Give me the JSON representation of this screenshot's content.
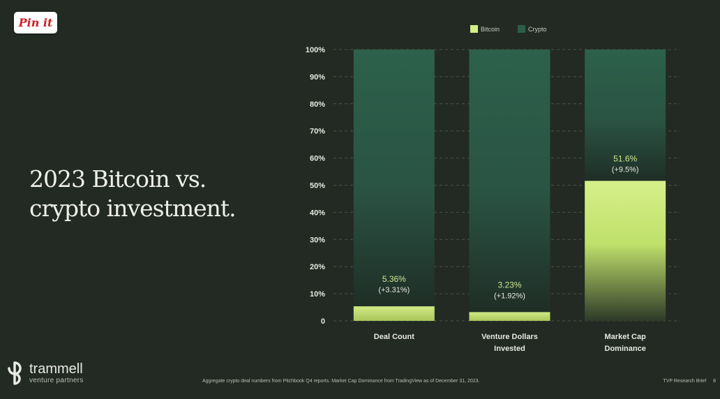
{
  "pin_button": {
    "label": "Pin it"
  },
  "title": {
    "line1": "2023 Bitcoin vs.",
    "line2": "crypto investment."
  },
  "brand": {
    "name": "trammell",
    "sub": "venture partners"
  },
  "footnote": "Aggregate crypto deal numbers from Pitchbook Q4 reports. Market Cap Dominance from TradingView as of December 31, 2023.",
  "page_ref": {
    "label": "TVP Research Brief",
    "number": "8"
  },
  "colors": {
    "background": "#232a23",
    "bitcoin": "#d4ef86",
    "crypto": "#2c5d4a",
    "label_green": "#cfe88f",
    "text": "#e6e9e1"
  },
  "chart_data": {
    "type": "bar",
    "stacked": true,
    "categories": [
      [
        "Deal Count"
      ],
      [
        "Venture Dollars",
        "Invested"
      ],
      [
        "Market Cap",
        "Dominance"
      ]
    ],
    "series": [
      {
        "name": "Bitcoin",
        "values": [
          5.36,
          3.23,
          51.6
        ]
      },
      {
        "name": "Crypto",
        "values": [
          94.64,
          96.77,
          48.4
        ]
      }
    ],
    "data_labels": [
      {
        "value": "5.36%",
        "change": "(+3.31%)"
      },
      {
        "value": "3.23%",
        "change": "(+1.92%)"
      },
      {
        "value": "51.6%",
        "change": "(+9.5%)"
      }
    ],
    "y_ticks": [
      "0",
      "10%",
      "20%",
      "30%",
      "40%",
      "50%",
      "60%",
      "70%",
      "80%",
      "90%",
      "100%"
    ],
    "ylim": [
      0,
      100
    ],
    "grid": true,
    "grid_style": "dashed",
    "legend_position": "top",
    "ylabel": "",
    "xlabel": ""
  }
}
